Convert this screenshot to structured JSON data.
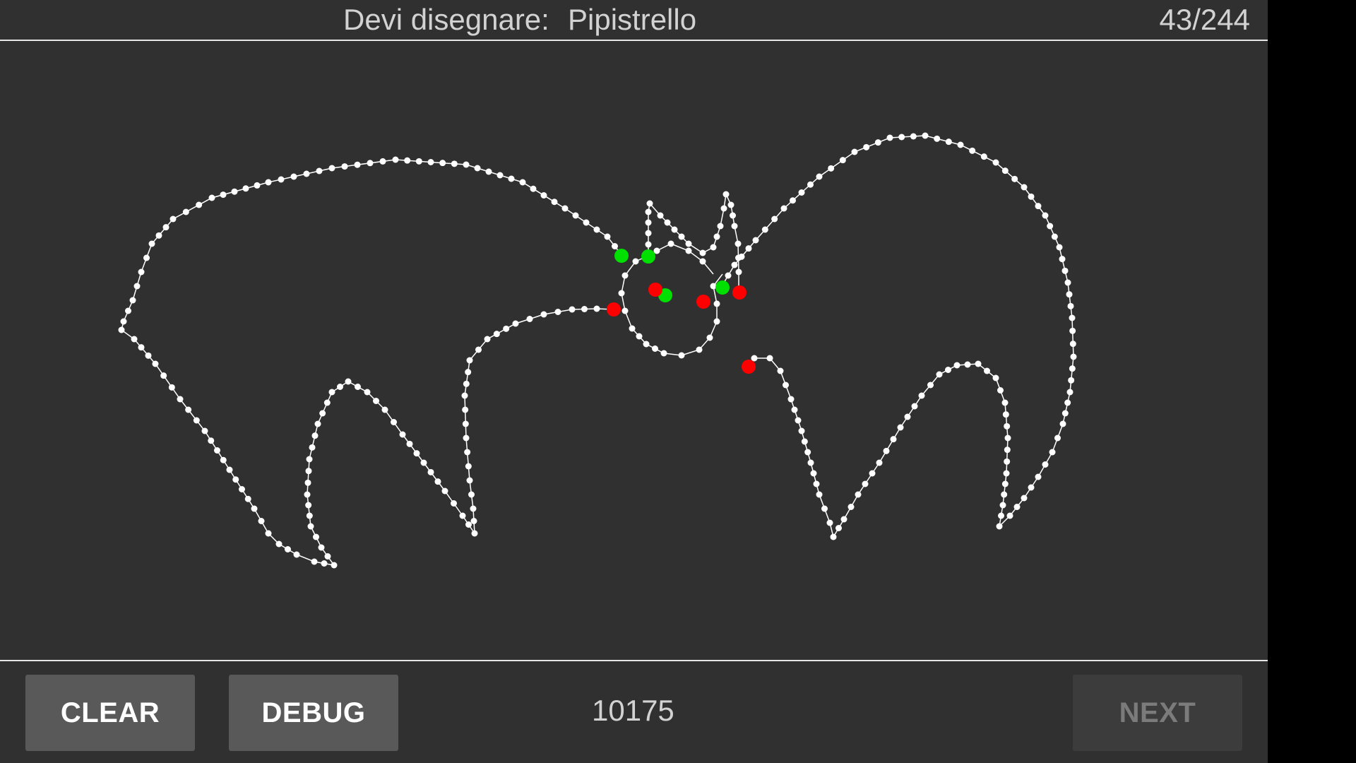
{
  "header": {
    "prompt_label": "Devi disegnare:",
    "prompt_word": "Pipistrello",
    "counter": "43/244"
  },
  "toolbar": {
    "clear_label": "CLEAR",
    "debug_label": "DEBUG",
    "score": "10175",
    "next_label": "NEXT",
    "next_enabled": false
  },
  "colors": {
    "background": "#303030",
    "stroke": "#ffffff",
    "marker_start": "#00e000",
    "marker_end": "#ff0000"
  }
}
